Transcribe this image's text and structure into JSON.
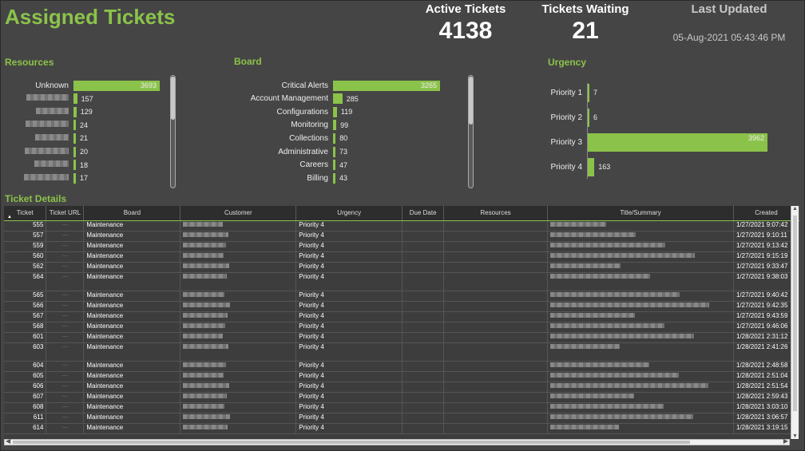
{
  "header": {
    "title": "Assigned Tickets",
    "active_label": "Active Tickets",
    "active_value": "4138",
    "waiting_label": "Tickets Waiting",
    "waiting_value": "21",
    "updated_label": "Last Updated",
    "updated_value": "05-Aug-2021 05:43:46 PM"
  },
  "accent_color": "#8bc34a",
  "resources": {
    "title": "Resources",
    "rows": [
      {
        "label": "Unknown",
        "value": 3693
      },
      {
        "label": "",
        "value": 157
      },
      {
        "label": "",
        "value": 129
      },
      {
        "label": "",
        "value": 24
      },
      {
        "label": "",
        "value": 21
      },
      {
        "label": "",
        "value": 20
      },
      {
        "label": "",
        "value": 18
      },
      {
        "label": "",
        "value": 17
      }
    ]
  },
  "board": {
    "title": "Board",
    "rows": [
      {
        "label": "Critical Alerts",
        "value": 3265
      },
      {
        "label": "Account Management",
        "value": 285
      },
      {
        "label": "Configurations",
        "value": 119
      },
      {
        "label": "Monitoring",
        "value": 99
      },
      {
        "label": "Collections",
        "value": 80
      },
      {
        "label": "Administrative",
        "value": 73
      },
      {
        "label": "Careers",
        "value": 47
      },
      {
        "label": "Billing",
        "value": 43
      }
    ]
  },
  "urgency": {
    "title": "Urgency",
    "rows": [
      {
        "label": "Priority 1",
        "value": 7
      },
      {
        "label": "Priority 2",
        "value": 6
      },
      {
        "label": "Priority 3",
        "value": 3962
      },
      {
        "label": "Priority 4",
        "value": 163
      }
    ]
  },
  "details": {
    "title": "Ticket Details",
    "columns": [
      "Ticket",
      "Ticket URL",
      "Board",
      "Customer",
      "Urgency",
      "Due Date",
      "Resources",
      "Title/Summary",
      "Created"
    ],
    "rows": [
      {
        "ticket": "555",
        "board": "Maintenance",
        "urgency": "Priority 4",
        "created": "1/27/2021 9:07:42"
      },
      {
        "ticket": "557",
        "board": "Maintenance",
        "urgency": "Priority 4",
        "created": "1/27/2021 9:10:11"
      },
      {
        "ticket": "559",
        "board": "Maintenance",
        "urgency": "Priority 4",
        "created": "1/27/2021 9:13:42"
      },
      {
        "ticket": "560",
        "board": "Maintenance",
        "urgency": "Priority 4",
        "created": "1/27/2021 9:15:19"
      },
      {
        "ticket": "562",
        "board": "Maintenance",
        "urgency": "Priority 4",
        "created": "1/27/2021 9:33:47"
      },
      {
        "ticket": "564",
        "board": "Maintenance",
        "urgency": "Priority 4",
        "created": "1/27/2021 9:38:03",
        "tall": true
      },
      {
        "ticket": "565",
        "board": "Maintenance",
        "urgency": "Priority 4",
        "created": "1/27/2021 9:40:42"
      },
      {
        "ticket": "566",
        "board": "Maintenance",
        "urgency": "Priority 4",
        "created": "1/27/2021 9:42:35"
      },
      {
        "ticket": "567",
        "board": "Maintenance",
        "urgency": "Priority 4",
        "created": "1/27/2021 9:43:59"
      },
      {
        "ticket": "568",
        "board": "Maintenance",
        "urgency": "Priority 4",
        "created": "1/27/2021 9:46:06"
      },
      {
        "ticket": "601",
        "board": "Maintenance",
        "urgency": "Priority 4",
        "created": "1/28/2021 2:31:12"
      },
      {
        "ticket": "603",
        "board": "Maintenance",
        "urgency": "Priority 4",
        "created": "1/28/2021 2:41:26",
        "tall": true
      },
      {
        "ticket": "604",
        "board": "Maintenance",
        "urgency": "Priority 4",
        "created": "1/28/2021 2:48:58"
      },
      {
        "ticket": "605",
        "board": "Maintenance",
        "urgency": "Priority 4",
        "created": "1/28/2021 2:51:04"
      },
      {
        "ticket": "606",
        "board": "Maintenance",
        "urgency": "Priority 4",
        "created": "1/28/2021 2:51:54"
      },
      {
        "ticket": "607",
        "board": "Maintenance",
        "urgency": "Priority 4",
        "created": "1/28/2021 2:59:43"
      },
      {
        "ticket": "608",
        "board": "Maintenance",
        "urgency": "Priority 4",
        "created": "1/28/2021 3:03:10"
      },
      {
        "ticket": "611",
        "board": "Maintenance",
        "urgency": "Priority 4",
        "created": "1/28/2021 3:06:57"
      },
      {
        "ticket": "614",
        "board": "Maintenance",
        "urgency": "Priority 4",
        "created": "1/28/2021 3:19:15"
      }
    ]
  }
}
